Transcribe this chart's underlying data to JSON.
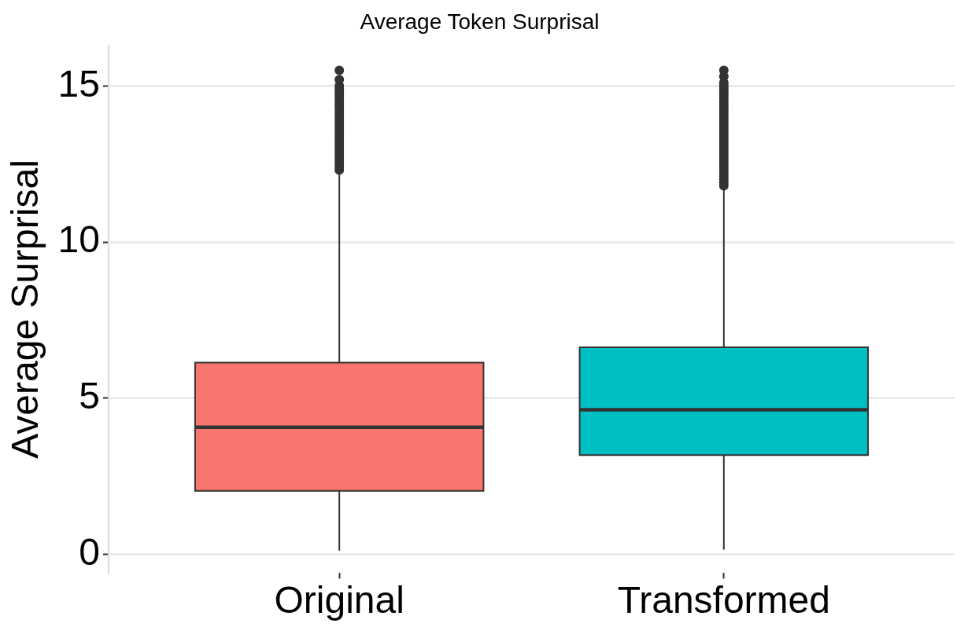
{
  "chart_data": {
    "type": "box",
    "title": "Average Token Surprisal",
    "ylabel": "Average Surprisal",
    "categories": [
      "Original",
      "Transformed"
    ],
    "colors": [
      "#f8766d",
      "#00bfc4"
    ],
    "boxes": [
      {
        "low": 0.12,
        "q1": 2.03,
        "median": 4.07,
        "q3": 6.14,
        "high": 12.2,
        "outliers": [
          12.3,
          12.4,
          12.5,
          12.6,
          12.7,
          12.8,
          12.9,
          13.0,
          13.1,
          13.2,
          13.3,
          13.4,
          13.5,
          13.6,
          13.7,
          13.8,
          13.9,
          14.0,
          14.1,
          14.2,
          14.3,
          14.4,
          14.5,
          14.6,
          14.7,
          14.8,
          14.9,
          15.0,
          15.2,
          15.5
        ]
      },
      {
        "low": 0.15,
        "q1": 3.18,
        "median": 4.63,
        "q3": 6.63,
        "high": 11.7,
        "outliers": [
          11.8,
          11.9,
          12.0,
          12.1,
          12.2,
          12.3,
          12.4,
          12.5,
          12.6,
          12.7,
          12.8,
          12.9,
          13.0,
          13.1,
          13.2,
          13.3,
          13.4,
          13.5,
          13.6,
          13.7,
          13.8,
          13.9,
          14.0,
          14.1,
          14.2,
          14.3,
          14.4,
          14.5,
          14.6,
          14.7,
          14.8,
          14.9,
          15.0,
          15.1,
          15.3,
          15.5
        ]
      }
    ],
    "ylim": [
      -0.6,
      16.3
    ],
    "yticks": [
      0,
      5,
      10,
      15
    ],
    "grid": "y",
    "marker": "circle"
  }
}
